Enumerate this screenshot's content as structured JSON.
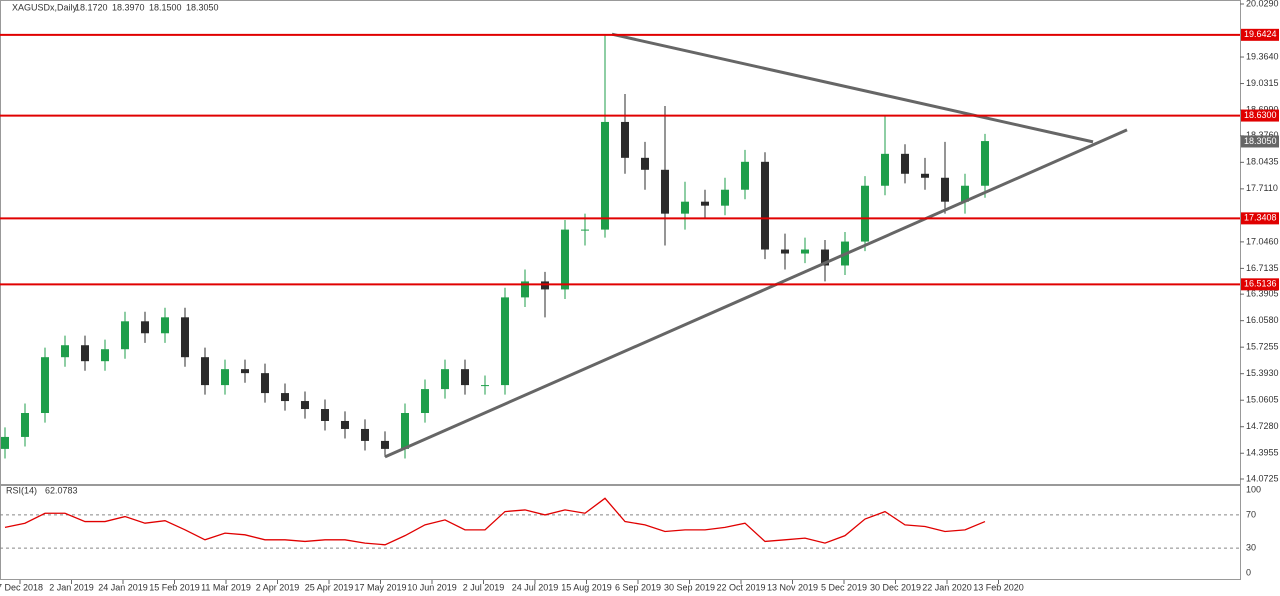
{
  "header": {
    "symbol": "XAGUSDx,Daily",
    "ohlc": [
      {
        "value": 18.172,
        "label": "18.1720"
      },
      {
        "value": 18.397,
        "label": "18.3970"
      },
      {
        "value": 18.15,
        "label": "18.1500"
      },
      {
        "value": 18.305,
        "label": "18.3050"
      }
    ]
  },
  "chart_data": {
    "type": "candlestick",
    "up_color": "#1e9e4a",
    "down_color": "#2b2b2b",
    "open": [
      14.45,
      14.6,
      14.9,
      15.6,
      15.75,
      15.55,
      15.7,
      16.05,
      15.9,
      16.1,
      15.6,
      15.25,
      15.45,
      15.4,
      15.15,
      15.05,
      14.95,
      14.8,
      14.7,
      14.55,
      14.45,
      14.9,
      15.2,
      15.45,
      15.25,
      15.25,
      16.35,
      16.55,
      16.45,
      17.2,
      17.2,
      18.55,
      18.1,
      17.95,
      17.4,
      17.55,
      17.5,
      17.7,
      18.05,
      16.95,
      16.9,
      16.95,
      16.75,
      17.05,
      17.75,
      18.15,
      17.9,
      17.85,
      17.55,
      17.75
    ],
    "high": [
      14.72,
      15.02,
      15.72,
      15.87,
      15.87,
      15.82,
      16.17,
      16.17,
      16.22,
      16.22,
      15.72,
      15.57,
      15.57,
      15.52,
      15.27,
      15.17,
      15.07,
      14.92,
      14.82,
      14.67,
      15.02,
      15.32,
      15.57,
      15.57,
      15.37,
      16.47,
      16.7,
      16.67,
      17.32,
      17.4,
      19.64,
      18.9,
      18.3,
      18.75,
      17.8,
      17.7,
      17.85,
      18.2,
      18.17,
      17.15,
      17.1,
      17.07,
      17.17,
      17.87,
      18.63,
      18.27,
      18.1,
      18.3,
      17.9,
      18.4
    ],
    "low": [
      14.33,
      14.48,
      14.78,
      15.48,
      15.43,
      15.43,
      15.58,
      15.78,
      15.78,
      15.48,
      15.13,
      15.13,
      15.28,
      15.03,
      14.93,
      14.83,
      14.68,
      14.58,
      14.43,
      14.35,
      14.33,
      14.78,
      15.08,
      15.13,
      15.13,
      15.13,
      16.23,
      16.1,
      16.33,
      17.0,
      17.1,
      17.9,
      17.7,
      17.0,
      17.2,
      17.35,
      17.38,
      17.58,
      16.83,
      16.7,
      16.78,
      16.55,
      16.63,
      16.93,
      17.63,
      17.78,
      17.7,
      17.4,
      17.4,
      17.6
    ],
    "close": [
      14.6,
      14.9,
      15.6,
      15.75,
      15.55,
      15.7,
      16.05,
      15.9,
      16.1,
      15.6,
      15.25,
      15.45,
      15.4,
      15.15,
      15.05,
      14.95,
      14.8,
      14.7,
      14.55,
      14.45,
      14.9,
      15.2,
      15.45,
      15.25,
      15.25,
      16.35,
      16.55,
      16.45,
      17.2,
      17.2,
      18.55,
      18.1,
      17.95,
      17.4,
      17.55,
      17.5,
      17.7,
      18.05,
      16.95,
      16.9,
      16.95,
      16.75,
      17.05,
      17.75,
      18.15,
      17.9,
      17.85,
      17.55,
      17.75,
      18.31
    ],
    "ylim": [
      14.0725,
      20.029
    ],
    "yticks": [
      {
        "value": 20.029,
        "label": "20.0290"
      },
      {
        "value": 19.364,
        "label": "19.3640"
      },
      {
        "value": 19.0315,
        "label": "19.0315"
      },
      {
        "value": 18.699,
        "label": "18.6990"
      },
      {
        "value": 18.376,
        "label": "18.3760"
      },
      {
        "value": 18.0435,
        "label": "18.0435"
      },
      {
        "value": 17.711,
        "label": "17.7110"
      },
      {
        "value": 17.046,
        "label": "17.0460"
      },
      {
        "value": 16.7135,
        "label": "16.7135"
      },
      {
        "value": 16.3905,
        "label": "16.3905"
      },
      {
        "value": 16.058,
        "label": "16.0580"
      },
      {
        "value": 15.7255,
        "label": "15.7255"
      },
      {
        "value": 15.393,
        "label": "15.3930"
      },
      {
        "value": 15.0605,
        "label": "15.0605"
      },
      {
        "value": 14.728,
        "label": "14.7280"
      },
      {
        "value": 14.3955,
        "label": "14.3955"
      },
      {
        "value": 14.0725,
        "label": "14.0725"
      }
    ],
    "levels": [
      {
        "value": 19.6424,
        "label": "19.6424"
      },
      {
        "value": 18.63,
        "label": "18.6300"
      },
      {
        "value": 17.3408,
        "label": "17.3408"
      },
      {
        "value": 16.5136,
        "label": "16.5136"
      }
    ],
    "level_color": "#e00000",
    "current": {
      "value": 18.305,
      "label": "18.3050"
    },
    "trendlines": [
      {
        "from": [
          19,
          14.35
        ],
        "to": [
          56.1,
          18.45
        ]
      },
      {
        "from": [
          30.35,
          19.65
        ],
        "to": [
          54.4,
          18.3
        ]
      }
    ],
    "xlabels": [
      "7 Dec 2018",
      "2 Jan 2019",
      "24 Jan 2019",
      "15 Feb 2019",
      "11 Mar 2019",
      "2 Apr 2019",
      "25 Apr 2019",
      "17 May 2019",
      "10 Jun 2019",
      "2 Jul 2019",
      "24 Jul 2019",
      "15 Aug 2019",
      "6 Sep 2019",
      "30 Sep 2019",
      "22 Oct 2019",
      "13 Nov 2019",
      "5 Dec 2019",
      "30 Dec 2019",
      "22 Jan 2020",
      "13 Feb 2020"
    ]
  },
  "rsi": {
    "name": "RSI(14)",
    "last": 62.0783,
    "color": "#e00000",
    "values": [
      55,
      60,
      72,
      72,
      62,
      62,
      68,
      60,
      63,
      52,
      40,
      48,
      46,
      40,
      40,
      38,
      40,
      40,
      36,
      34,
      45,
      58,
      64,
      52,
      52,
      74,
      76,
      70,
      76,
      72,
      90,
      62,
      58,
      50,
      52,
      52,
      55,
      60,
      38,
      40,
      42,
      36,
      45,
      65,
      74,
      58,
      56,
      50,
      52,
      62
    ],
    "ylim": [
      0,
      100
    ],
    "yticks": [
      0,
      30,
      70,
      100
    ],
    "levels": [
      30,
      70
    ]
  }
}
